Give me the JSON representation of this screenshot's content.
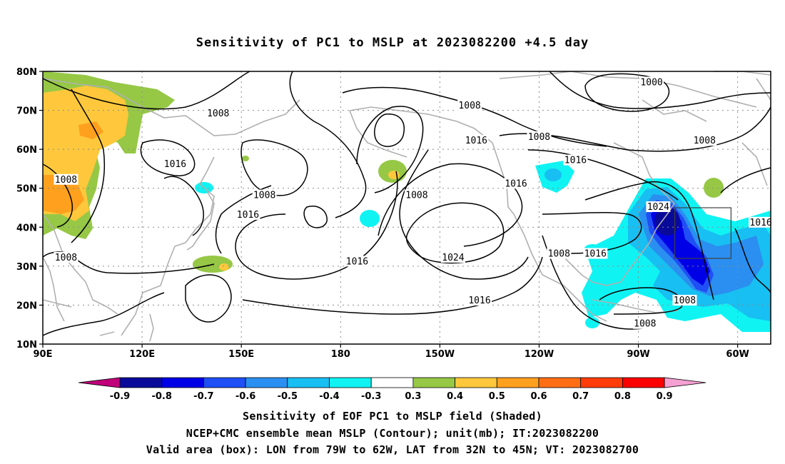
{
  "title": "Sensitivity of PC1 to MSLP at 2023082200 +4.5 day",
  "captions": {
    "line1": "Sensitivity of EOF PC1 to MSLP field (Shaded)",
    "line2": "NCEP+CMC ensemble mean MSLP (Contour); unit(mb); IT:2023082200",
    "line3": "Valid area (box): LON from 79W to 62W, LAT from 32N to 45N; VT: 2023082700"
  },
  "map": {
    "lon_range": [
      90,
      310
    ],
    "lat_range": [
      10,
      80
    ],
    "lat_ticks": [
      {
        "value": 80,
        "label": "80N"
      },
      {
        "value": 70,
        "label": "70N"
      },
      {
        "value": 60,
        "label": "60N"
      },
      {
        "value": 50,
        "label": "50N"
      },
      {
        "value": 40,
        "label": "40N"
      },
      {
        "value": 30,
        "label": "30N"
      },
      {
        "value": 20,
        "label": "20N"
      },
      {
        "value": 10,
        "label": "10N"
      }
    ],
    "lon_ticks": [
      {
        "value": 90,
        "label": "90E"
      },
      {
        "value": 120,
        "label": "120E"
      },
      {
        "value": 150,
        "label": "150E"
      },
      {
        "value": 180,
        "label": "180"
      },
      {
        "value": 210,
        "label": "150W"
      },
      {
        "value": 240,
        "label": "120W"
      },
      {
        "value": 270,
        "label": "90W"
      },
      {
        "value": 300,
        "label": "60W"
      }
    ],
    "valid_box": {
      "lon": [
        281,
        298
      ],
      "lat": [
        32,
        45
      ]
    },
    "contour_labels": [
      {
        "lon": 143,
        "lat": 69,
        "text": "1008"
      },
      {
        "lon": 97,
        "lat": 52,
        "text": "1008"
      },
      {
        "lon": 130,
        "lat": 56,
        "text": "1016"
      },
      {
        "lon": 97,
        "lat": 32,
        "text": "1008"
      },
      {
        "lon": 157,
        "lat": 48,
        "text": "1008"
      },
      {
        "lon": 152,
        "lat": 43,
        "text": "1016"
      },
      {
        "lon": 185,
        "lat": 31,
        "text": "1016"
      },
      {
        "lon": 203,
        "lat": 48,
        "text": "1008"
      },
      {
        "lon": 219,
        "lat": 71,
        "text": "1008"
      },
      {
        "lon": 221,
        "lat": 62,
        "text": "1016"
      },
      {
        "lon": 214,
        "lat": 32,
        "text": "1024"
      },
      {
        "lon": 233,
        "lat": 51,
        "text": "1016"
      },
      {
        "lon": 240,
        "lat": 63,
        "text": "1008"
      },
      {
        "lon": 251,
        "lat": 57,
        "text": "1016"
      },
      {
        "lon": 274,
        "lat": 77,
        "text": "1000"
      },
      {
        "lon": 290,
        "lat": 62,
        "text": "1008"
      },
      {
        "lon": 276,
        "lat": 45,
        "text": "1024"
      },
      {
        "lon": 307,
        "lat": 41,
        "text": "1016"
      },
      {
        "lon": 257,
        "lat": 33,
        "text": "1016"
      },
      {
        "lon": 246,
        "lat": 33,
        "text": "1008"
      },
      {
        "lon": 222,
        "lat": 21,
        "text": "1016"
      },
      {
        "lon": 284,
        "lat": 21,
        "text": "1008"
      },
      {
        "lon": 272,
        "lat": 15,
        "text": "1008"
      }
    ]
  },
  "colorbar": {
    "labels": [
      "-0.9",
      "-0.8",
      "-0.7",
      "-0.6",
      "-0.5",
      "-0.4",
      "-0.3",
      "0.3",
      "0.4",
      "0.5",
      "0.6",
      "0.7",
      "0.8",
      "0.9"
    ],
    "colors": [
      "#0a0a9a",
      "#0000e6",
      "#1f4ff5",
      "#2a8ff0",
      "#18bff2",
      "#10f3f3",
      "#ffffff",
      "#96c846",
      "#ffc83c",
      "#ffa01e",
      "#ff6e14",
      "#ff3c0a",
      "#fa0000"
    ],
    "low_end_color": "#c0007a",
    "high_end_color": "#f5a0d2"
  }
}
